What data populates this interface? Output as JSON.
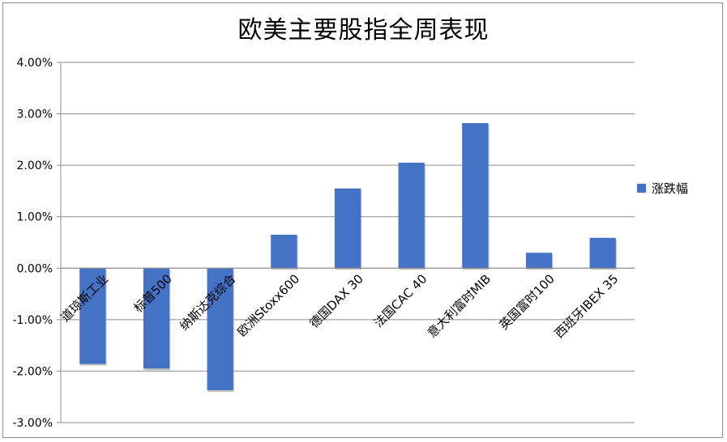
{
  "chart_data": {
    "type": "bar",
    "title": "欧美主要股指全周表现",
    "xlabel": "",
    "ylabel": "",
    "categories": [
      "道琼斯工业",
      "标普500",
      "纳斯达克综合",
      "欧洲Stoxx600",
      "德国DAX 30",
      "法国CAC 40",
      "意大利富时MIB",
      "英国富时100",
      "西班牙IBEX 35"
    ],
    "series": [
      {
        "name": "涨跌幅",
        "values": [
          -1.86,
          -1.95,
          -2.37,
          0.65,
          1.55,
          2.05,
          2.82,
          0.3,
          0.59
        ],
        "color": "#4472c4"
      }
    ],
    "ylim": [
      -3,
      4
    ],
    "yticks": [
      -3,
      -2,
      -1,
      0,
      1,
      2,
      3,
      4
    ],
    "ytick_labels": [
      "-3.00%",
      "-2.00%",
      "-1.00%",
      "0.00%",
      "1.00%",
      "2.00%",
      "3.00%",
      "4.00%"
    ],
    "grid": true,
    "legend_position": "right"
  }
}
